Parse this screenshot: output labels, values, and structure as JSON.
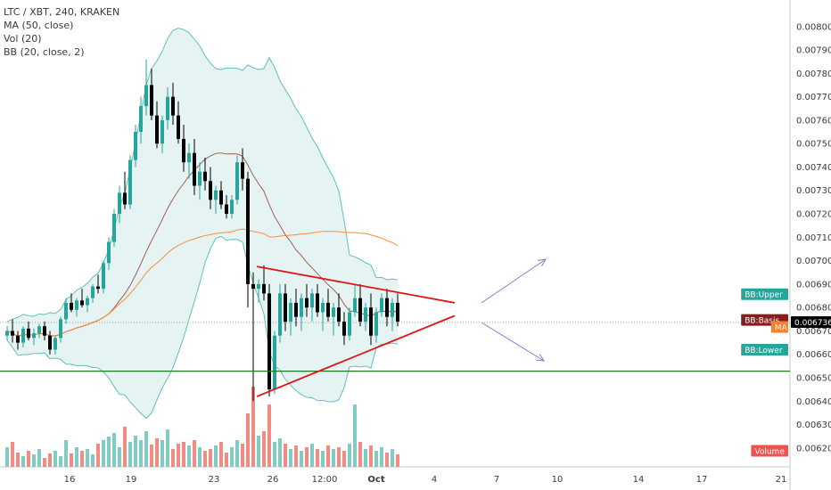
{
  "legend": {
    "symbol": "LTC / XBT, 240, KRAKEN",
    "ma": "MA (50, close)",
    "vol": "Vol (20)",
    "bb": "BB (20, close, 2)"
  },
  "price_axis": {
    "ticks": [
      "0.006200",
      "0.006300",
      "0.006400",
      "0.006500",
      "0.006600",
      "0.006700",
      "0.006800",
      "0.006900",
      "0.007000",
      "0.007100",
      "0.007200",
      "0.007300",
      "0.007400",
      "0.007500",
      "0.007600",
      "0.007700",
      "0.007800",
      "0.007900",
      "0.008000"
    ],
    "tags": [
      {
        "text": "BB:Upper",
        "value": 0.006855,
        "color": "#26a69a"
      },
      {
        "text": "BB:Basis",
        "value": 0.006745,
        "color": "#8b1c1c"
      },
      {
        "text": "MA",
        "value": 0.006715,
        "color": "#ff7f27"
      },
      {
        "text": "0.006736",
        "value": 0.006736,
        "color": "#000000"
      },
      {
        "text": "BB:Lower",
        "value": 0.006618,
        "color": "#26a69a"
      },
      {
        "text": "Volume",
        "value": 0.006186,
        "color": "#ef5350"
      }
    ]
  },
  "time_axis": {
    "ticks": [
      {
        "label": "16",
        "bold": false
      },
      {
        "label": "19",
        "bold": false
      },
      {
        "label": "23",
        "bold": false
      },
      {
        "label": "26",
        "bold": false
      },
      {
        "label": "12:00",
        "bold": false
      },
      {
        "label": "Oct",
        "bold": true
      },
      {
        "label": "4",
        "bold": false
      },
      {
        "label": "7",
        "bold": false
      },
      {
        "label": "10",
        "bold": false
      },
      {
        "label": "14",
        "bold": false
      },
      {
        "label": "17",
        "bold": false
      },
      {
        "label": "21",
        "bold": false
      }
    ]
  },
  "colors": {
    "up": "#26a69a",
    "down": "#000000",
    "bb_band": "#26a69a",
    "bb_basis": "#8b1c1c",
    "ma": "#ff7f27",
    "triangle": "#e01515",
    "support": "#1b7a1b",
    "arrows": "#7d82c8",
    "vol_up": "#80cbc4",
    "vol_down": "#f28b82"
  },
  "chart_data": {
    "type": "candlestick",
    "y_range": [
      0.00615,
      0.00806
    ],
    "support_level": 0.006528,
    "last_price": 0.006736,
    "candles": [
      [
        0.00668,
        0.00672,
        0.00666,
        0.0067
      ],
      [
        0.0067,
        0.00675,
        0.00665,
        0.00668
      ],
      [
        0.00668,
        0.0067,
        0.00662,
        0.00665
      ],
      [
        0.00665,
        0.00672,
        0.00663,
        0.00671
      ],
      [
        0.00671,
        0.00674,
        0.00666,
        0.00667
      ],
      [
        0.00667,
        0.00671,
        0.00664,
        0.00669
      ],
      [
        0.00669,
        0.00673,
        0.00667,
        0.00672
      ],
      [
        0.00672,
        0.00674,
        0.00666,
        0.00668
      ],
      [
        0.00668,
        0.0067,
        0.0066,
        0.00662
      ],
      [
        0.00662,
        0.00668,
        0.0066,
        0.00667
      ],
      [
        0.00667,
        0.00676,
        0.00665,
        0.00675
      ],
      [
        0.00675,
        0.00684,
        0.00673,
        0.00682
      ],
      [
        0.00682,
        0.00686,
        0.00678,
        0.00679
      ],
      [
        0.00679,
        0.00684,
        0.00676,
        0.00683
      ],
      [
        0.00683,
        0.00688,
        0.0068,
        0.00681
      ],
      [
        0.00681,
        0.00685,
        0.00678,
        0.00684
      ],
      [
        0.00684,
        0.0069,
        0.00682,
        0.00689
      ],
      [
        0.00689,
        0.00694,
        0.00686,
        0.00688
      ],
      [
        0.00688,
        0.007,
        0.00686,
        0.00699
      ],
      [
        0.00699,
        0.0071,
        0.00696,
        0.00708
      ],
      [
        0.00708,
        0.00722,
        0.00706,
        0.0072
      ],
      [
        0.0072,
        0.00732,
        0.00716,
        0.00729
      ],
      [
        0.00729,
        0.00738,
        0.00722,
        0.00724
      ],
      [
        0.00724,
        0.00745,
        0.00722,
        0.00743
      ],
      [
        0.00743,
        0.00758,
        0.0074,
        0.00755
      ],
      [
        0.00755,
        0.0077,
        0.0075,
        0.00766
      ],
      [
        0.00766,
        0.00786,
        0.00762,
        0.00775
      ],
      [
        0.00775,
        0.00782,
        0.0076,
        0.00762
      ],
      [
        0.00762,
        0.00768,
        0.00748,
        0.0075
      ],
      [
        0.0075,
        0.00762,
        0.00746,
        0.0076
      ],
      [
        0.0076,
        0.00774,
        0.00756,
        0.0077
      ],
      [
        0.0077,
        0.00776,
        0.00758,
        0.00762
      ],
      [
        0.00762,
        0.00768,
        0.0075,
        0.00752
      ],
      [
        0.00752,
        0.00758,
        0.00738,
        0.00742
      ],
      [
        0.00742,
        0.0075,
        0.00735,
        0.00746
      ],
      [
        0.00746,
        0.00752,
        0.00728,
        0.00732
      ],
      [
        0.00732,
        0.00742,
        0.00726,
        0.00738
      ],
      [
        0.00738,
        0.00744,
        0.0073,
        0.00734
      ],
      [
        0.00734,
        0.0074,
        0.00722,
        0.00726
      ],
      [
        0.00726,
        0.00732,
        0.0072,
        0.0073
      ],
      [
        0.0073,
        0.00734,
        0.00722,
        0.00724
      ],
      [
        0.00724,
        0.00728,
        0.00718,
        0.0072
      ],
      [
        0.0072,
        0.00728,
        0.00718,
        0.00726
      ],
      [
        0.00726,
        0.00745,
        0.00724,
        0.00742
      ],
      [
        0.00742,
        0.00748,
        0.0073,
        0.00735
      ],
      [
        0.00735,
        0.00738,
        0.0068,
        0.0069
      ],
      [
        0.0069,
        0.00695,
        0.0064,
        0.00688
      ],
      [
        0.00688,
        0.00692,
        0.00682,
        0.0069
      ],
      [
        0.0069,
        0.00698,
        0.00683,
        0.00686
      ],
      [
        0.00686,
        0.0069,
        0.00642,
        0.00645
      ],
      [
        0.00645,
        0.0067,
        0.00643,
        0.00668
      ],
      [
        0.00668,
        0.0069,
        0.00665,
        0.00686
      ],
      [
        0.00686,
        0.0069,
        0.0067,
        0.00674
      ],
      [
        0.00674,
        0.00684,
        0.00668,
        0.00682
      ],
      [
        0.00682,
        0.00688,
        0.00672,
        0.00676
      ],
      [
        0.00676,
        0.00686,
        0.0067,
        0.00684
      ],
      [
        0.00684,
        0.0069,
        0.00676,
        0.0068
      ],
      [
        0.0068,
        0.00688,
        0.00674,
        0.00686
      ],
      [
        0.00686,
        0.0069,
        0.00676,
        0.00678
      ],
      [
        0.00678,
        0.00684,
        0.0067,
        0.00682
      ],
      [
        0.00682,
        0.00688,
        0.00674,
        0.00676
      ],
      [
        0.00676,
        0.00682,
        0.00668,
        0.0068
      ],
      [
        0.0068,
        0.00686,
        0.00672,
        0.00674
      ],
      [
        0.00674,
        0.00678,
        0.00664,
        0.00668
      ],
      [
        0.00668,
        0.0068,
        0.00666,
        0.00678
      ],
      [
        0.00678,
        0.0069,
        0.00676,
        0.00684
      ],
      [
        0.00684,
        0.0069,
        0.00672,
        0.00674
      ],
      [
        0.00674,
        0.00682,
        0.0067,
        0.0068
      ],
      [
        0.0068,
        0.00686,
        0.00664,
        0.00668
      ],
      [
        0.00668,
        0.0068,
        0.00665,
        0.00678
      ],
      [
        0.00678,
        0.00686,
        0.00676,
        0.00684
      ],
      [
        0.00684,
        0.00688,
        0.00672,
        0.00676
      ],
      [
        0.00676,
        0.00684,
        0.0067,
        0.00682
      ],
      [
        0.00682,
        0.00686,
        0.00672,
        0.00674
      ]
    ],
    "volumes": [
      22,
      28,
      16,
      12,
      18,
      14,
      20,
      10,
      15,
      18,
      12,
      30,
      15,
      22,
      18,
      20,
      14,
      26,
      30,
      34,
      38,
      22,
      45,
      28,
      35,
      30,
      40,
      25,
      32,
      30,
      42,
      20,
      26,
      28,
      24,
      30,
      22,
      18,
      20,
      24,
      28,
      16,
      22,
      30,
      26,
      60,
      90,
      35,
      40,
      70,
      28,
      32,
      26,
      20,
      24,
      18,
      22,
      26,
      20,
      18,
      24,
      20,
      22,
      18,
      26,
      70,
      28,
      20,
      24,
      18,
      22,
      16,
      20,
      14
    ]
  }
}
